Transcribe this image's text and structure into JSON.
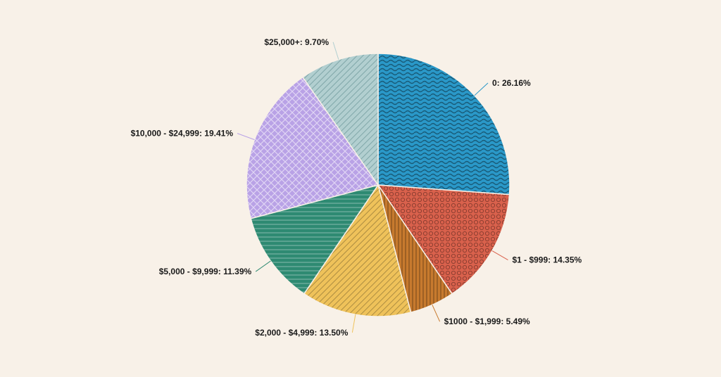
{
  "chart_data": {
    "type": "pie",
    "title": "",
    "slices": [
      {
        "label": "0",
        "value": 26.16,
        "display": "0: 26.16%",
        "color": "#2a98c8",
        "pattern": "waves",
        "label_side": "right"
      },
      {
        "label": "$1 - $999",
        "value": 14.35,
        "display": "$1 - $999: 14.35%",
        "color": "#d9614c",
        "pattern": "circles",
        "label_side": "right"
      },
      {
        "label": "$1000 - $1,999",
        "value": 5.49,
        "display": "$1000 - $1,999: 5.49%",
        "color": "#c77a2e",
        "pattern": "vertical-lines",
        "label_side": "right"
      },
      {
        "label": "$2,000 - $4,999",
        "value": 13.5,
        "display": "$2,000 - $4,999: 13.50%",
        "color": "#efc25a",
        "pattern": "diagonal-lines",
        "label_side": "left"
      },
      {
        "label": "$5,000 - $9,999",
        "value": 11.39,
        "display": "$5,000 - $9,999: 11.39%",
        "color": "#2e8a72",
        "pattern": "horizontal-lines",
        "label_side": "left"
      },
      {
        "label": "$10,000 - $24,999",
        "value": 19.41,
        "display": "$10,000 - $24,999: 19.41%",
        "color": "#b9a2e6",
        "pattern": "diamonds",
        "label_side": "left"
      },
      {
        "label": "$25,000+",
        "value": 9.7,
        "display": "$25,000+: 9.70%",
        "color": "#b2cfd0",
        "pattern": "diagonal-lines",
        "label_side": "left"
      }
    ],
    "start_angle_deg": 0,
    "direction": "clockwise",
    "legend": "none"
  }
}
